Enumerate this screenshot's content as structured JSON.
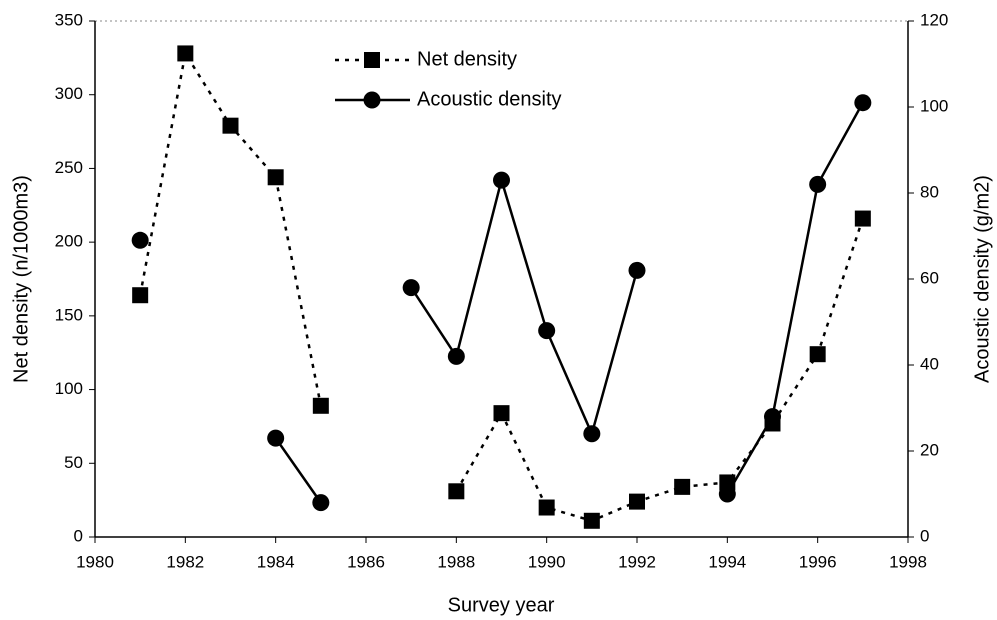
{
  "chart_data": {
    "type": "line",
    "x_label": "Survey year",
    "y_label": "Net density (n/1000m3)",
    "y2_label": "Acoustic density (g/m2)",
    "x": [
      1981,
      1982,
      1983,
      1984,
      1985,
      1986,
      1987,
      1988,
      1989,
      1990,
      1991,
      1992,
      1993,
      1994,
      1995,
      1996,
      1997
    ],
    "xlim": [
      1980,
      1998
    ],
    "xticks": [
      1980,
      1982,
      1984,
      1986,
      1988,
      1990,
      1992,
      1994,
      1996,
      1998
    ],
    "ylim": [
      0,
      350
    ],
    "yticks": [
      0,
      50,
      100,
      150,
      200,
      250,
      300,
      350
    ],
    "y2lim": [
      0,
      120
    ],
    "y2ticks": [
      0,
      20,
      40,
      60,
      80,
      100,
      120
    ],
    "legend": "upper center",
    "series": [
      {
        "name": "Net density",
        "color": "#000000",
        "linestyle": "dotted",
        "marker": "square",
        "values": [
          164,
          328,
          279,
          244,
          89,
          null,
          null,
          31,
          84,
          20,
          11,
          24,
          34,
          37,
          77,
          124,
          216
        ]
      },
      {
        "name": "Acoustic density",
        "color": "#000000",
        "linestyle": "solid",
        "marker": "circle",
        "axis": "y2",
        "values": [
          69,
          null,
          null,
          23,
          8,
          null,
          58,
          42,
          83,
          48,
          24,
          62,
          null,
          10,
          28,
          82,
          101
        ]
      }
    ]
  }
}
